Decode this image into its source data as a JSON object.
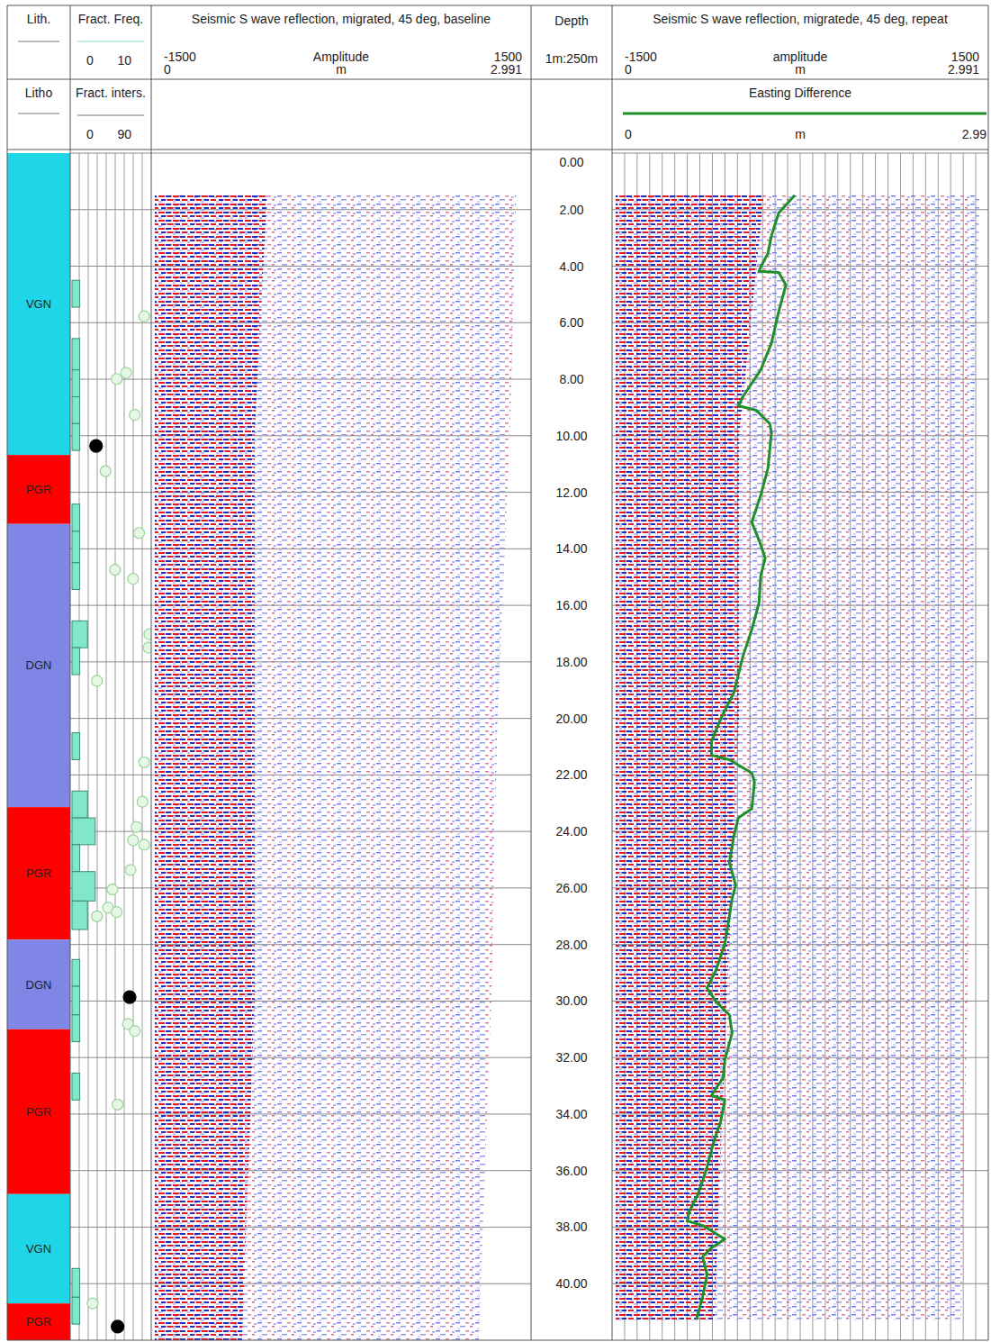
{
  "depth_axis": {
    "title": "Depth",
    "scale_label": "1m:250m",
    "ylim": [
      0,
      42
    ],
    "yticks": [
      {
        "value": 0,
        "label": "0.00"
      },
      {
        "value": 2,
        "label": "2.00"
      },
      {
        "value": 4,
        "label": "4.00"
      },
      {
        "value": 6,
        "label": "6.00"
      },
      {
        "value": 8,
        "label": "8.00"
      },
      {
        "value": 10,
        "label": "10.00"
      },
      {
        "value": 12,
        "label": "12.00"
      },
      {
        "value": 14,
        "label": "14.00"
      },
      {
        "value": 16,
        "label": "16.00"
      },
      {
        "value": 18,
        "label": "18.00"
      },
      {
        "value": 20,
        "label": "20.00"
      },
      {
        "value": 22,
        "label": "22.00"
      },
      {
        "value": 24,
        "label": "24.00"
      },
      {
        "value": 26,
        "label": "26.00"
      },
      {
        "value": 28,
        "label": "28.00"
      },
      {
        "value": 30,
        "label": "30.00"
      },
      {
        "value": 32,
        "label": "32.00"
      },
      {
        "value": 34,
        "label": "34.00"
      },
      {
        "value": 36,
        "label": "36.00"
      },
      {
        "value": 38,
        "label": "38.00"
      },
      {
        "value": 40,
        "label": "40.00"
      }
    ]
  },
  "chart_data": [
    {
      "type": "interval",
      "title": "Lith.",
      "subtitle": "Litho",
      "top": [
        0,
        10.68,
        13.12,
        23.14,
        27.83,
        31.0,
        36.83,
        40.7
      ],
      "bottom": [
        10.68,
        13.12,
        23.14,
        27.83,
        31.0,
        36.83,
        40.7,
        42
      ],
      "labels": [
        "VGN",
        "PGR",
        "DGN",
        "PGR",
        "DGN",
        "PGR",
        "VGN",
        "PGR"
      ],
      "colors": [
        "#1fd5e8",
        "#ff0000",
        "#7f86e6",
        "#ff0000",
        "#7f86e6",
        "#ff0000",
        "#1fd5e8",
        "#ff0000"
      ]
    },
    {
      "type": "bar",
      "orientation": "horizontal",
      "title": "Fract. Freq.",
      "xlim": [
        0,
        10
      ],
      "xticks": [
        0,
        10
      ],
      "color": "#80e8c8",
      "top": [
        4.5,
        6.56,
        7.67,
        8.62,
        9.57,
        12.42,
        13.38,
        14.49,
        16.55,
        17.5,
        20.51,
        22.57,
        23.52,
        24.47,
        25.42,
        26.46,
        28.53,
        29.48,
        30.49,
        32.55,
        39.46,
        40.48
      ],
      "bottom": [
        5.45,
        7.67,
        8.62,
        9.57,
        10.52,
        13.38,
        14.49,
        15.44,
        17.5,
        18.45,
        21.46,
        23.52,
        24.47,
        25.42,
        26.46,
        27.47,
        29.48,
        30.49,
        31.44,
        33.5,
        40.48,
        41.43
      ],
      "values": [
        1,
        1,
        1,
        1,
        1,
        1,
        1,
        1,
        2,
        1,
        1,
        2,
        3,
        1,
        3,
        2,
        1,
        1,
        1,
        1,
        1,
        1
      ]
    },
    {
      "type": "scatter",
      "title": "Fract. inters.",
      "xlim": [
        0,
        90
      ],
      "xticks": [
        0,
        90
      ],
      "series": [
        {
          "color": "#e6f7e6",
          "marker": "circle-open",
          "x": [
            84,
            52,
            63,
            73,
            39,
            78,
            50,
            71,
            90,
            89,
            29,
            84,
            82,
            75,
            71,
            84,
            68,
            47,
            42,
            29,
            52,
            65,
            73,
            53,
            24
          ],
          "values": [
            5.77,
            7.99,
            7.77,
            9.26,
            11.25,
            13.44,
            14.74,
            15.06,
            17.02,
            17.5,
            18.67,
            21.55,
            22.95,
            23.84,
            24.31,
            24.47,
            25.36,
            26.05,
            26.69,
            27.0,
            26.85,
            30.81,
            31.06,
            33.66,
            40.7
          ]
        },
        {
          "color": "#000000",
          "marker": "circle",
          "x": [
            28,
            67,
            53
          ],
          "values": [
            10.36,
            29.86,
            41.52
          ]
        }
      ]
    },
    {
      "type": "seismic",
      "title": "Seismic S wave reflection, migrated, 45 deg, baseline",
      "amplitude_label": "Amplitude",
      "amplitude_ticks": [
        -1500,
        1500
      ],
      "x_unit": "m",
      "xlim": [
        0,
        2.991
      ],
      "xticks": [
        0,
        2.991
      ],
      "depth": [
        1.5,
        10,
        20,
        30,
        42
      ],
      "extent": [
        2.9,
        2.85,
        2.75,
        2.7,
        2.6
      ],
      "strong": [
        0.9,
        0.8,
        0.8,
        0.8,
        0.7
      ]
    },
    {
      "type": "seismic",
      "title": "Seismic S wave reflection, migratede, 45 deg, repeat",
      "amplitude_label": "amplitude",
      "amplitude_ticks": [
        -1500,
        1500
      ],
      "x_unit": "m",
      "xlim": [
        0,
        2.991
      ],
      "xticks": [
        0,
        2.991
      ],
      "depth": [
        1.5,
        10,
        20,
        30,
        41.3
      ],
      "extent": [
        2.95,
        2.9,
        2.9,
        2.85,
        2.8
      ],
      "strong": [
        1.2,
        1.0,
        1.0,
        0.9,
        0.8
      ]
    },
    {
      "type": "line",
      "title": "Easting Difference",
      "x_unit": "m",
      "xlim": [
        0,
        2.99
      ],
      "xticks": [
        0,
        2.99
      ],
      "color": "#1f8f2a",
      "values": [
        1.451,
        1.319,
        1.26,
        1.231,
        1.172,
        1.158,
        1.319,
        1.378,
        1.319,
        1.26,
        1.172,
        1.026,
        0.989,
        1.136,
        1.246,
        1.26,
        1.231,
        1.172,
        1.099,
        1.158,
        1.209,
        1.172,
        1.158,
        1.099,
        1.026,
        0.953,
        0.843,
        0.769,
        0.769,
        0.916,
        1.099,
        1.121,
        1.099,
        0.989,
        0.953,
        0.916,
        0.967,
        0.938,
        0.916,
        0.879,
        0.806,
        0.733,
        0.806,
        0.916,
        0.938,
        0.879,
        0.865,
        0.769,
        0.879,
        0.843,
        0.791,
        0.733,
        0.66,
        0.586,
        0.572,
        0.696,
        0.879,
        0.769,
        0.696,
        0.733,
        0.696,
        0.645
      ],
      "depth": [
        1.49,
        2.12,
        2.92,
        3.55,
        4.03,
        4.18,
        4.22,
        4.66,
        5.61,
        6.72,
        7.67,
        8.62,
        8.94,
        9.1,
        9.57,
        9.89,
        11.16,
        12.11,
        13.06,
        13.69,
        14.33,
        14.96,
        15.91,
        16.86,
        17.81,
        19.08,
        20.03,
        20.82,
        21.3,
        21.46,
        21.93,
        22.25,
        23.2,
        23.52,
        24.15,
        25.1,
        25.9,
        26.37,
        27.0,
        27.96,
        28.91,
        29.54,
        30.02,
        30.49,
        31.13,
        32.08,
        32.71,
        33.34,
        33.5,
        34.29,
        34.93,
        35.88,
        36.83,
        37.46,
        37.78,
        37.94,
        38.42,
        38.73,
        39.05,
        39.68,
        40.48,
        41.27
      ]
    }
  ]
}
